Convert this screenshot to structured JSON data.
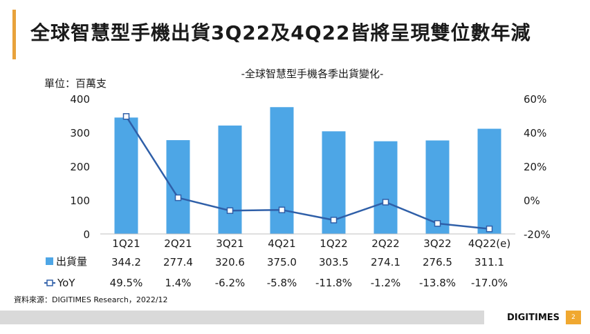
{
  "slide": {
    "title": "全球智慧型手機出貨3Q22及4Q22皆將呈現雙位數年減",
    "source": "資料來源：DIGITIMES Research，2022/12",
    "logo": "DIGITIMES",
    "page_number": "2",
    "accent_color": "#e8a23c"
  },
  "chart_data": {
    "type": "bar",
    "title": "-全球智慧型手機各季出貨變化-",
    "unit_label": "單位：百萬支",
    "categories": [
      "1Q21",
      "2Q21",
      "3Q21",
      "4Q21",
      "1Q22",
      "2Q22",
      "3Q22",
      "4Q22(e)"
    ],
    "left_axis": {
      "ylim": [
        0,
        400
      ],
      "ticks": [
        "0",
        "100",
        "200",
        "300",
        "400"
      ]
    },
    "right_axis": {
      "ylim": [
        -20,
        60
      ],
      "ticks": [
        "-20%",
        "0%",
        "20%",
        "40%",
        "60%"
      ]
    },
    "series": [
      {
        "name": "出貨量",
        "type": "bar",
        "axis": "left",
        "color": "#4da6e6",
        "values": [
          344.2,
          277.4,
          320.6,
          375.0,
          303.5,
          274.1,
          276.5,
          311.1
        ],
        "labels": [
          "344.2",
          "277.4",
          "320.6",
          "375.0",
          "303.5",
          "274.1",
          "276.5",
          "311.1"
        ]
      },
      {
        "name": "YoY",
        "type": "line",
        "axis": "right",
        "color": "#2f5fa8",
        "values": [
          49.5,
          1.4,
          -6.2,
          -5.8,
          -11.8,
          -1.2,
          -13.8,
          -17.0
        ],
        "labels": [
          "49.5%",
          "1.4%",
          "-6.2%",
          "-5.8%",
          "-11.8%",
          "-1.2%",
          "-13.8%",
          "-17.0%"
        ]
      }
    ],
    "grid": false,
    "legend": "data-table-below"
  }
}
